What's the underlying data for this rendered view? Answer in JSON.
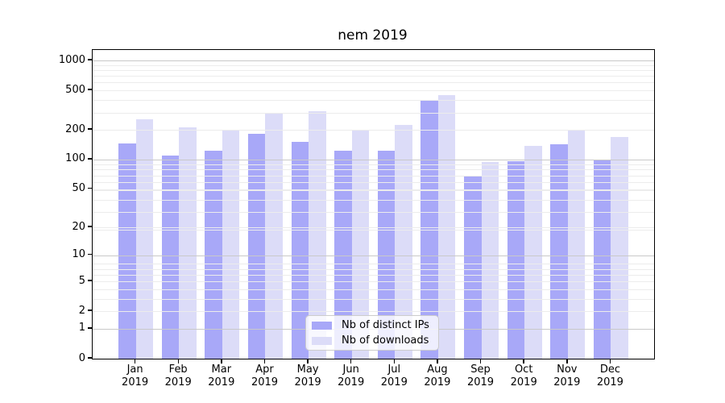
{
  "title": "nem 2019",
  "chart_data": {
    "type": "bar",
    "title": "nem 2019",
    "yscale": "log1p",
    "ylim": [
      0,
      1276
    ],
    "grid": true,
    "y_ticks": [
      1000,
      500,
      200,
      100,
      50,
      20,
      10,
      5,
      2,
      1,
      0
    ],
    "y_tick_labels": [
      "1000",
      "500",
      "200",
      "100",
      "50",
      "20",
      "10",
      "5",
      "2",
      "1",
      "0"
    ],
    "major_grid_values": [
      1,
      10,
      100,
      1000
    ],
    "categories": [
      "Jan 2019",
      "Feb 2019",
      "Mar 2019",
      "Apr 2019",
      "May 2019",
      "Jun 2019",
      "Jul 2019",
      "Aug 2019",
      "Sep 2019",
      "Oct 2019",
      "Nov 2019",
      "Dec 2019"
    ],
    "month_labels": [
      "Jan",
      "Feb",
      "Mar",
      "Apr",
      "May",
      "Jun",
      "Jul",
      "Aug",
      "Sep",
      "Oct",
      "Nov",
      "Dec"
    ],
    "year_label": "2019",
    "series": [
      {
        "name": "Nb of distinct IPs",
        "color": "#a8a8f8",
        "values": [
          145,
          110,
          123,
          181,
          152,
          123,
          123,
          393,
          68,
          96,
          143,
          98
        ]
      },
      {
        "name": "Nb of downloads",
        "color": "#dcdcf8",
        "values": [
          255,
          212,
          202,
          296,
          306,
          202,
          226,
          445,
          95,
          138,
          202,
          170
        ]
      }
    ],
    "legend_position": "lower center",
    "colors": {
      "minor_grid": "#ececec",
      "major_grid": "#c9c9c9",
      "axis": "#000000",
      "background": "#ffffff"
    }
  }
}
